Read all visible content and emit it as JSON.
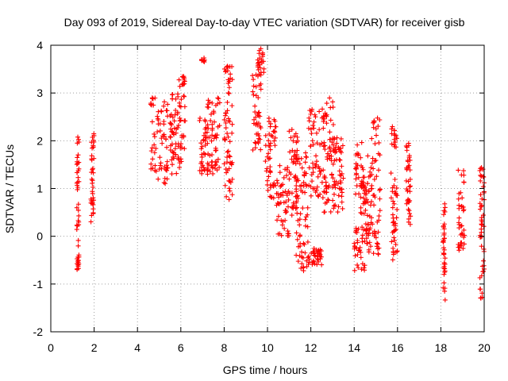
{
  "chart_data": {
    "type": "scatter",
    "title": "Day 093 of 2019, Sidereal Day-to-day VTEC variation (SDTVAR) for receiver gisb",
    "xlabel": "GPS time / hours",
    "ylabel": "SDTVAR / TECUs",
    "xlim": [
      0,
      20
    ],
    "ylim": [
      -2,
      4
    ],
    "xticks": [
      0,
      2,
      4,
      6,
      8,
      10,
      12,
      14,
      16,
      18,
      20
    ],
    "yticks": [
      -2,
      -1,
      0,
      1,
      2,
      3,
      4
    ],
    "grid": true,
    "marker": "+",
    "color": "#ff0000",
    "clusters": [
      {
        "x": [
          1.2,
          1.3
        ],
        "y": [
          -0.7,
          2.1
        ]
      },
      {
        "x": [
          1.85,
          2.0
        ],
        "y": [
          0.25,
          2.15
        ]
      },
      {
        "x": [
          4.6,
          5.4
        ],
        "y": [
          1.1,
          2.95
        ]
      },
      {
        "x": [
          5.5,
          5.8
        ],
        "y": [
          1.3,
          3.0
        ]
      },
      {
        "x": [
          5.85,
          6.2
        ],
        "y": [
          1.4,
          3.5
        ]
      },
      {
        "x": [
          6.95,
          7.1
        ],
        "y": [
          3.65,
          3.75
        ]
      },
      {
        "x": [
          6.85,
          7.3
        ],
        "y": [
          1.3,
          2.5
        ]
      },
      {
        "x": [
          7.2,
          7.8
        ],
        "y": [
          1.3,
          2.9
        ]
      },
      {
        "x": [
          8.0,
          8.4
        ],
        "y": [
          0.6,
          3.6
        ]
      },
      {
        "x": [
          9.3,
          9.7
        ],
        "y": [
          1.8,
          3.4
        ]
      },
      {
        "x": [
          9.55,
          9.85
        ],
        "y": [
          3.4,
          3.95
        ]
      },
      {
        "x": [
          9.9,
          10.4
        ],
        "y": [
          0.8,
          2.5
        ]
      },
      {
        "x": [
          10.4,
          11.0
        ],
        "y": [
          0.0,
          1.5
        ]
      },
      {
        "x": [
          11.0,
          11.4
        ],
        "y": [
          0.4,
          2.3
        ]
      },
      {
        "x": [
          11.3,
          11.9
        ],
        "y": [
          -0.75,
          1.8
        ]
      },
      {
        "x": [
          11.9,
          12.5
        ],
        "y": [
          -0.6,
          -0.25
        ]
      },
      {
        "x": [
          11.9,
          12.6
        ],
        "y": [
          0.8,
          2.7
        ]
      },
      {
        "x": [
          12.6,
          13.1
        ],
        "y": [
          0.5,
          2.95
        ]
      },
      {
        "x": [
          13.0,
          13.5
        ],
        "y": [
          0.5,
          2.1
        ]
      },
      {
        "x": [
          14.0,
          14.5
        ],
        "y": [
          -0.75,
          2.0
        ]
      },
      {
        "x": [
          14.3,
          14.7
        ],
        "y": [
          -0.2,
          1.2
        ]
      },
      {
        "x": [
          14.6,
          15.2
        ],
        "y": [
          -0.4,
          2.5
        ]
      },
      {
        "x": [
          15.7,
          16.0
        ],
        "y": [
          -0.5,
          2.3
        ]
      },
      {
        "x": [
          16.4,
          16.6
        ],
        "y": [
          0.2,
          2.15
        ]
      },
      {
        "x": [
          18.1,
          18.2
        ],
        "y": [
          -1.4,
          0.7
        ]
      },
      {
        "x": [
          18.8,
          19.1
        ],
        "y": [
          -0.3,
          1.4
        ]
      },
      {
        "x": [
          19.8,
          20.0
        ],
        "y": [
          -1.3,
          1.45
        ]
      }
    ]
  }
}
